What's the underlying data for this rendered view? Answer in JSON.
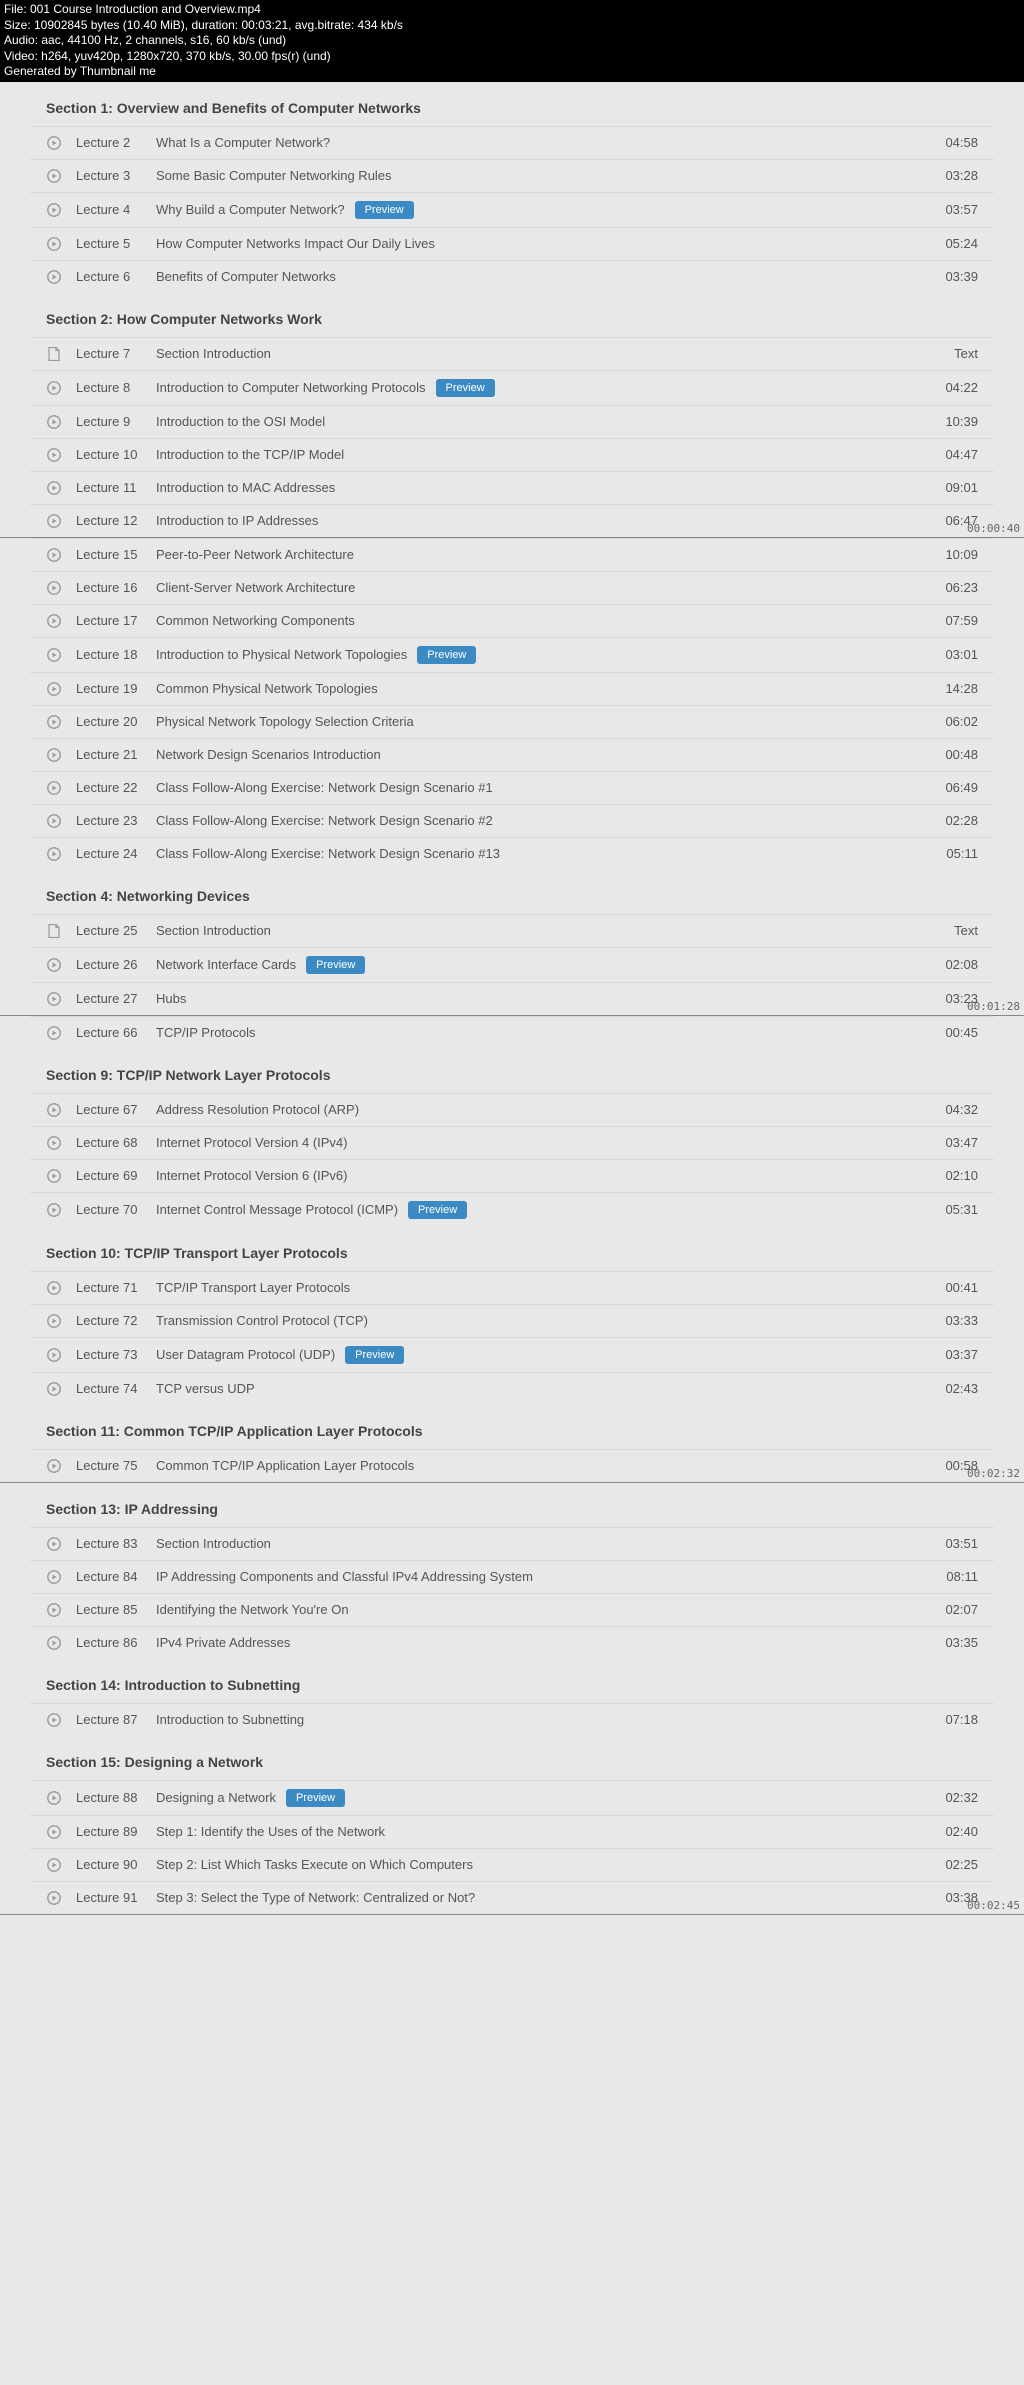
{
  "header": {
    "file": "File: 001 Course Introduction and Overview.mp4",
    "size": "Size: 10902845 bytes (10.40 MiB), duration: 00:03:21, avg.bitrate: 434 kb/s",
    "audio": "Audio: aac, 44100 Hz, 2 channels, s16, 60 kb/s (und)",
    "video": "Video: h264, yuv420p, 1280x720, 370 kb/s, 30.00 fps(r) (und)",
    "generated": "Generated by Thumbnail me"
  },
  "preview_label": "Preview",
  "panels": [
    {
      "timestamp": "00:00:40",
      "sections": [
        {
          "title": "Section 1: Overview and Benefits of Computer Networks",
          "lectures": [
            {
              "num": "Lecture 2",
              "title": "What Is a Computer Network?",
              "dur": "04:58",
              "icon": "play"
            },
            {
              "num": "Lecture 3",
              "title": "Some Basic Computer Networking Rules",
              "dur": "03:28",
              "icon": "play"
            },
            {
              "num": "Lecture 4",
              "title": "Why Build a Computer Network?",
              "dur": "03:57",
              "icon": "play",
              "preview": true
            },
            {
              "num": "Lecture 5",
              "title": "How Computer Networks Impact Our Daily Lives",
              "dur": "05:24",
              "icon": "play"
            },
            {
              "num": "Lecture 6",
              "title": "Benefits of Computer Networks",
              "dur": "03:39",
              "icon": "play"
            }
          ]
        },
        {
          "title": "Section 2: How Computer Networks Work",
          "lectures": [
            {
              "num": "Lecture 7",
              "title": "Section Introduction",
              "dur": "Text",
              "icon": "doc"
            },
            {
              "num": "Lecture 8",
              "title": "Introduction to Computer Networking Protocols",
              "dur": "04:22",
              "icon": "play",
              "preview": true
            },
            {
              "num": "Lecture 9",
              "title": "Introduction to the OSI Model",
              "dur": "10:39",
              "icon": "play"
            },
            {
              "num": "Lecture 10",
              "title": "Introduction to the TCP/IP Model",
              "dur": "04:47",
              "icon": "play"
            },
            {
              "num": "Lecture 11",
              "title": "Introduction to MAC Addresses",
              "dur": "09:01",
              "icon": "play"
            },
            {
              "num": "Lecture 12",
              "title": "Introduction to IP Addresses",
              "dur": "06:47",
              "icon": "play"
            }
          ]
        }
      ]
    },
    {
      "timestamp": "00:01:28",
      "sections": [
        {
          "title": "",
          "lectures": [
            {
              "num": "Lecture 15",
              "title": "Peer-to-Peer Network Architecture",
              "dur": "10:09",
              "icon": "play"
            },
            {
              "num": "Lecture 16",
              "title": "Client-Server Network Architecture",
              "dur": "06:23",
              "icon": "play"
            },
            {
              "num": "Lecture 17",
              "title": "Common Networking Components",
              "dur": "07:59",
              "icon": "play"
            },
            {
              "num": "Lecture 18",
              "title": "Introduction to Physical Network Topologies",
              "dur": "03:01",
              "icon": "play",
              "preview": true
            },
            {
              "num": "Lecture 19",
              "title": "Common Physical Network Topologies",
              "dur": "14:28",
              "icon": "play"
            },
            {
              "num": "Lecture 20",
              "title": "Physical Network Topology Selection Criteria",
              "dur": "06:02",
              "icon": "play"
            },
            {
              "num": "Lecture 21",
              "title": "Network Design Scenarios Introduction",
              "dur": "00:48",
              "icon": "play"
            },
            {
              "num": "Lecture 22",
              "title": "Class Follow-Along Exercise: Network Design Scenario #1",
              "dur": "06:49",
              "icon": "play"
            },
            {
              "num": "Lecture 23",
              "title": "Class Follow-Along Exercise: Network Design Scenario #2",
              "dur": "02:28",
              "icon": "play"
            },
            {
              "num": "Lecture 24",
              "title": "Class Follow-Along Exercise: Network Design Scenario #13",
              "dur": "05:11",
              "icon": "play"
            }
          ]
        },
        {
          "title": "Section 4: Networking Devices",
          "lectures": [
            {
              "num": "Lecture 25",
              "title": "Section Introduction",
              "dur": "Text",
              "icon": "doc"
            },
            {
              "num": "Lecture 26",
              "title": "Network Interface Cards",
              "dur": "02:08",
              "icon": "play",
              "preview": true
            },
            {
              "num": "Lecture 27",
              "title": "Hubs",
              "dur": "03:23",
              "icon": "play"
            }
          ]
        }
      ]
    },
    {
      "timestamp": "00:02:32",
      "sections": [
        {
          "title": "",
          "lectures": [
            {
              "num": "Lecture 66",
              "title": "TCP/IP Protocols",
              "dur": "00:45",
              "icon": "play"
            }
          ]
        },
        {
          "title": "Section 9: TCP/IP Network Layer Protocols",
          "lectures": [
            {
              "num": "Lecture 67",
              "title": "Address Resolution Protocol (ARP)",
              "dur": "04:32",
              "icon": "play"
            },
            {
              "num": "Lecture 68",
              "title": "Internet Protocol Version 4 (IPv4)",
              "dur": "03:47",
              "icon": "play"
            },
            {
              "num": "Lecture 69",
              "title": "Internet Protocol Version 6 (IPv6)",
              "dur": "02:10",
              "icon": "play"
            },
            {
              "num": "Lecture 70",
              "title": "Internet Control Message Protocol (ICMP)",
              "dur": "05:31",
              "icon": "play",
              "preview": true
            }
          ]
        },
        {
          "title": "Section 10: TCP/IP Transport Layer Protocols",
          "lectures": [
            {
              "num": "Lecture 71",
              "title": "TCP/IP Transport Layer Protocols",
              "dur": "00:41",
              "icon": "play"
            },
            {
              "num": "Lecture 72",
              "title": "Transmission Control Protocol (TCP)",
              "dur": "03:33",
              "icon": "play"
            },
            {
              "num": "Lecture 73",
              "title": "User Datagram Protocol (UDP)",
              "dur": "03:37",
              "icon": "play",
              "preview": true
            },
            {
              "num": "Lecture 74",
              "title": "TCP versus UDP",
              "dur": "02:43",
              "icon": "play"
            }
          ]
        },
        {
          "title": "Section 11: Common TCP/IP Application Layer Protocols",
          "lectures": [
            {
              "num": "Lecture 75",
              "title": "Common TCP/IP Application Layer Protocols",
              "dur": "00:58",
              "icon": "play"
            }
          ]
        }
      ]
    },
    {
      "timestamp": "00:02:45",
      "sections": [
        {
          "title": "Section 13: IP Addressing",
          "lectures": [
            {
              "num": "Lecture 83",
              "title": "Section Introduction",
              "dur": "03:51",
              "icon": "play"
            },
            {
              "num": "Lecture 84",
              "title": "IP Addressing Components and Classful IPv4 Addressing System",
              "dur": "08:11",
              "icon": "play"
            },
            {
              "num": "Lecture 85",
              "title": "Identifying the Network You're On",
              "dur": "02:07",
              "icon": "play"
            },
            {
              "num": "Lecture 86",
              "title": "IPv4 Private Addresses",
              "dur": "03:35",
              "icon": "play"
            }
          ]
        },
        {
          "title": "Section 14: Introduction to Subnetting",
          "lectures": [
            {
              "num": "Lecture 87",
              "title": "Introduction to Subnetting",
              "dur": "07:18",
              "icon": "play"
            }
          ]
        },
        {
          "title": "Section 15: Designing a Network",
          "lectures": [
            {
              "num": "Lecture 88",
              "title": "Designing a Network",
              "dur": "02:32",
              "icon": "play",
              "preview": true
            },
            {
              "num": "Lecture 89",
              "title": "Step 1: Identify the Uses of the Network",
              "dur": "02:40",
              "icon": "play"
            },
            {
              "num": "Lecture 90",
              "title": "Step 2: List Which Tasks Execute on Which Computers",
              "dur": "02:25",
              "icon": "play"
            },
            {
              "num": "Lecture 91",
              "title": "Step 3: Select the Type of Network: Centralized or Not?",
              "dur": "03:38",
              "icon": "play"
            }
          ]
        }
      ]
    }
  ]
}
